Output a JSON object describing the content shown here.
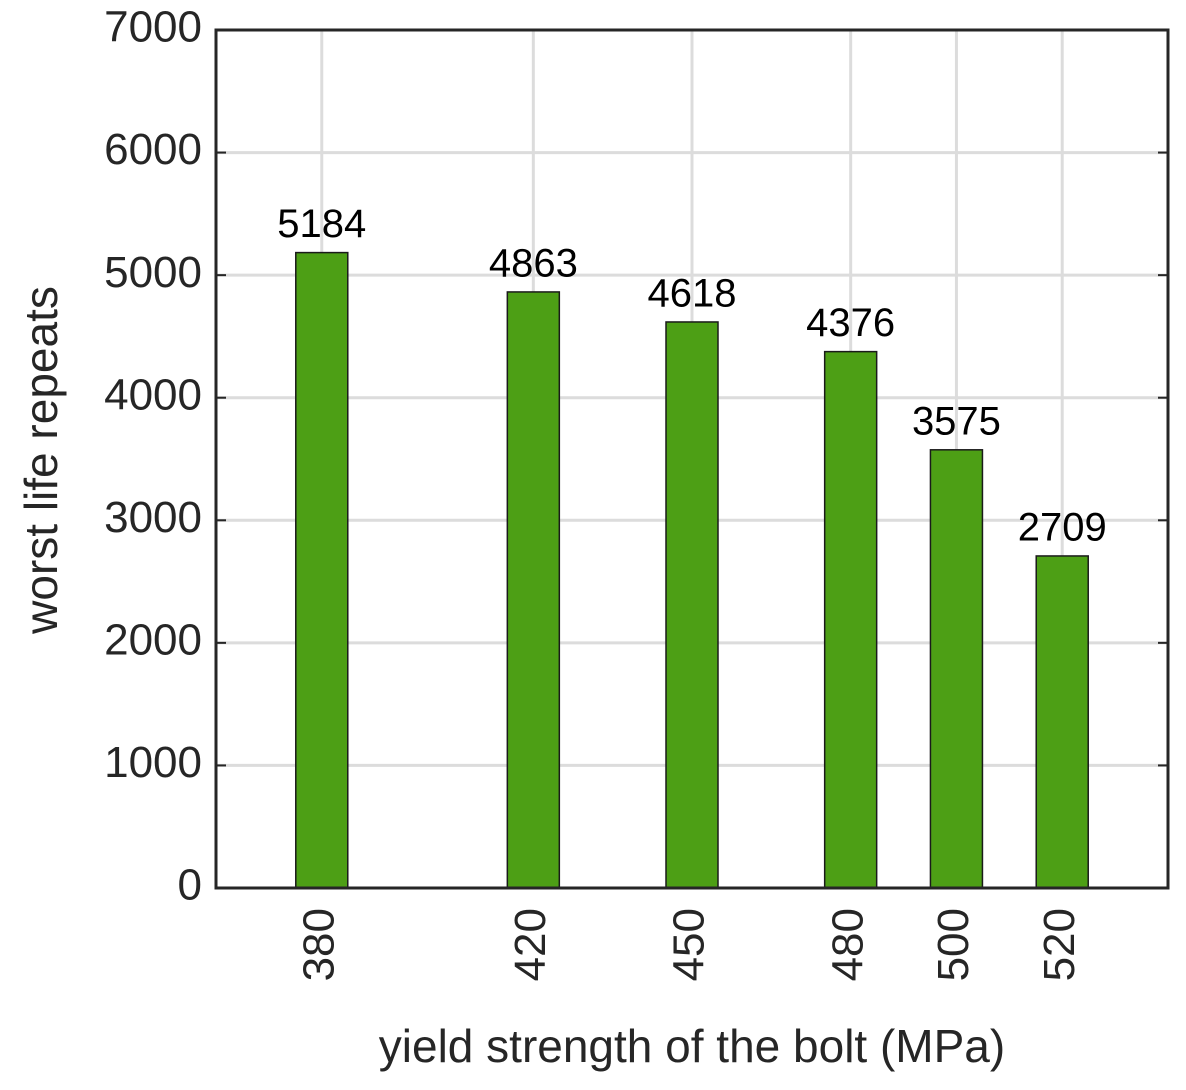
{
  "chart_data": {
    "type": "bar",
    "xlabel": "yield strength of the bolt (MPa)",
    "ylabel": "worst life repeats",
    "x": [
      380,
      420,
      450,
      480,
      500,
      520
    ],
    "values": [
      5184,
      4863,
      4618,
      4376,
      3575,
      2709
    ],
    "color": "#4d9f15",
    "xlim": [
      360,
      540
    ],
    "xticks": [
      380,
      420,
      450,
      480,
      500,
      520
    ],
    "ylim": [
      0,
      7000
    ],
    "yticks": [
      0,
      1000,
      2000,
      3000,
      4000,
      5000,
      6000,
      7000
    ],
    "grid": true
  }
}
